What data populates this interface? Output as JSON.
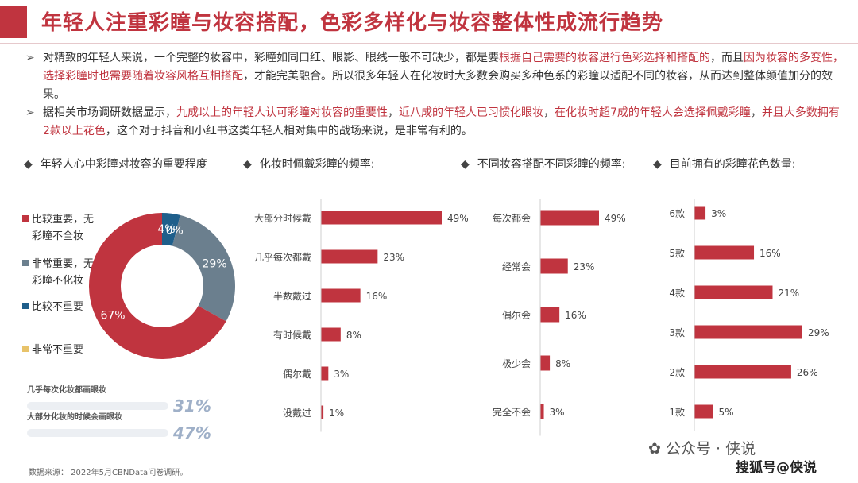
{
  "header": {
    "title": "年轻人注重彩瞳与妆容搭配，色彩多样化与妆容整体性成流行趋势"
  },
  "bullets": [
    [
      {
        "t": "对精致的年轻人来说，一个完整的妆容中，彩瞳如同口红、眼影、眼线一般不可缺少，都是要",
        "hl": false
      },
      {
        "t": "根据自己需要的妆容进行色彩选择和搭配的",
        "hl": true
      },
      {
        "t": "，而且",
        "hl": false
      },
      {
        "t": "因为妆容的多变性，选择彩瞳时也需要随着妆容风格互相搭配",
        "hl": true
      },
      {
        "t": "，才能完美融合。所以很多年轻人在化妆时大多数会购买多种色系的彩瞳以适配不同的妆容，从而达到整体颜值加分的效果。",
        "hl": false
      }
    ],
    [
      {
        "t": "据相关市场调研数据显示，",
        "hl": false
      },
      {
        "t": "九成以上的年轻人认可彩瞳对妆容的重要性",
        "hl": true
      },
      {
        "t": "，",
        "hl": false
      },
      {
        "t": "近八成的年轻人已习惯化眼妆",
        "hl": true
      },
      {
        "t": "，",
        "hl": false
      },
      {
        "t": "在化妆时超7成的年轻人会选择佩戴彩瞳",
        "hl": true
      },
      {
        "t": "，",
        "hl": false
      },
      {
        "t": "并且大多数拥有2款以上花色",
        "hl": true
      },
      {
        "t": "，这个对于抖音和小红书这类年轻人相对集中的战场来说，是非常有利的。",
        "hl": false
      }
    ]
  ],
  "sections": [
    {
      "label": "年轻人心中彩瞳对妆容的重要程度"
    },
    {
      "label": "化妆时佩戴彩瞳的频率:"
    },
    {
      "label": "不同妆容搭配不同彩瞳的频率:"
    },
    {
      "label": "目前拥有的彩瞳花色数量:"
    }
  ],
  "legend": [
    {
      "line1": "比较重要，无",
      "line2": "彩瞳不全妆",
      "color": "#c0343f"
    },
    {
      "line1": "非常重要，无",
      "line2": "彩瞳不化妆",
      "color": "#6b7f8e"
    },
    {
      "line1": "比较不重要",
      "line2": "",
      "color": "#1f5f8b"
    },
    {
      "line1": "非常不重要",
      "line2": "",
      "color": "#e8c36a"
    }
  ],
  "eye_stats": [
    {
      "label": "几乎每次化妆都画眼妆",
      "value": "31%"
    },
    {
      "label": "大部分化妆的时候会画眼妆",
      "value": "47%"
    }
  ],
  "chart_data": [
    {
      "type": "pie",
      "title": "年轻人心中彩瞳对妆容的重要程度",
      "labels": [
        "比较重要，无彩瞳不全妆",
        "非常重要，无彩瞳不化妆",
        "比较不重要",
        "非常不重要"
      ],
      "values": [
        67,
        29,
        4,
        0
      ],
      "display": [
        "67%",
        "29%",
        "4%",
        "0%"
      ],
      "colors": [
        "#c0343f",
        "#6b7f8e",
        "#1f5f8b",
        "#e8c36a"
      ],
      "donut": true
    },
    {
      "type": "bar",
      "orientation": "horizontal",
      "title": "化妆时佩戴彩瞳的频率:",
      "categories": [
        "大部分时候戴",
        "几乎每次都戴",
        "半数戴过",
        "有时候戴",
        "偶尔戴",
        "没戴过"
      ],
      "values": [
        49,
        23,
        16,
        8,
        3,
        1
      ],
      "display": [
        "49%",
        "23%",
        "16%",
        "8%",
        "3%",
        "1%"
      ],
      "color": "#c0343f"
    },
    {
      "type": "bar",
      "orientation": "horizontal",
      "title": "不同妆容搭配不同彩瞳的频率:",
      "categories": [
        "每次都会",
        "经常会",
        "偶尔会",
        "极少会",
        "完全不会"
      ],
      "values": [
        49,
        23,
        16,
        8,
        3
      ],
      "display": [
        "49%",
        "23%",
        "16%",
        "8%",
        "3%"
      ],
      "color": "#c0343f"
    },
    {
      "type": "bar",
      "orientation": "horizontal",
      "title": "目前拥有的彩瞳花色数量:",
      "categories": [
        "6款",
        "5款",
        "4款",
        "3款",
        "2款",
        "1款"
      ],
      "values": [
        3,
        16,
        21,
        29,
        26,
        5
      ],
      "display": [
        "3%",
        "16%",
        "21%",
        "29%",
        "26%",
        "5%"
      ],
      "color": "#c0343f"
    }
  ],
  "footer": {
    "source": "数据来源：  2022年5月CBNData问卷调研。",
    "wechat": "公众号 · 侠说",
    "sohu": "搜狐号@侠说"
  }
}
